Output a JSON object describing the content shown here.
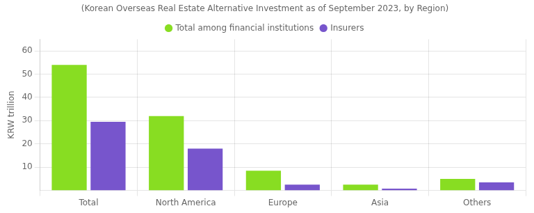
{
  "chart_data": {
    "type": "bar",
    "subtitle": "(Korean Overseas Real Estate Alternative Investment as of September 2023, by Region)",
    "categories": [
      "Total",
      "North America",
      "Europe",
      "Asia",
      "Others"
    ],
    "series": [
      {
        "name": "Total among financial institutions",
        "color": "#88dd22",
        "values": [
          54.0,
          32.0,
          8.5,
          2.5,
          5.0
        ]
      },
      {
        "name": "Insurers",
        "color": "#7755cc",
        "values": [
          29.5,
          18.0,
          2.5,
          0.8,
          3.5
        ]
      }
    ],
    "ylabel": "KRW trillion",
    "ylim": [
      0,
      65
    ],
    "yticks": [
      10,
      20,
      30,
      40,
      50,
      60
    ],
    "grid": true,
    "legend": "top"
  }
}
